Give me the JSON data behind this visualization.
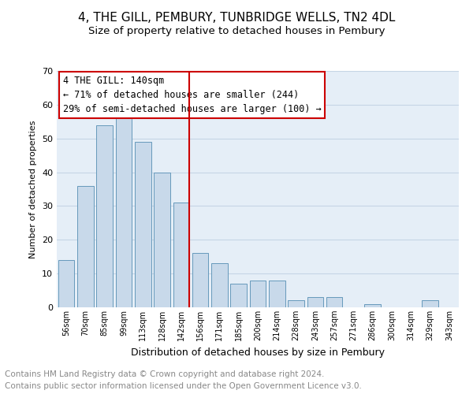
{
  "title": "4, THE GILL, PEMBURY, TUNBRIDGE WELLS, TN2 4DL",
  "subtitle": "Size of property relative to detached houses in Pembury",
  "xlabel": "Distribution of detached houses by size in Pembury",
  "ylabel": "Number of detached properties",
  "footer1": "Contains HM Land Registry data © Crown copyright and database right 2024.",
  "footer2": "Contains public sector information licensed under the Open Government Licence v3.0.",
  "bar_labels": [
    "56sqm",
    "70sqm",
    "85sqm",
    "99sqm",
    "113sqm",
    "128sqm",
    "142sqm",
    "156sqm",
    "171sqm",
    "185sqm",
    "200sqm",
    "214sqm",
    "228sqm",
    "243sqm",
    "257sqm",
    "271sqm",
    "286sqm",
    "300sqm",
    "314sqm",
    "329sqm",
    "343sqm"
  ],
  "bar_values": [
    14,
    36,
    54,
    57,
    49,
    40,
    31,
    16,
    13,
    7,
    8,
    8,
    2,
    3,
    3,
    0,
    1,
    0,
    0,
    2,
    0
  ],
  "bar_color": "#c8d9ea",
  "bar_edge_color": "#6699bb",
  "vline_color": "#cc0000",
  "annotation_line1": "4 THE GILL: 140sqm",
  "annotation_line2": "← 71% of detached houses are smaller (244)",
  "annotation_line3": "29% of semi-detached houses are larger (100) →",
  "annotation_box_color": "#ffffff",
  "annotation_box_edge_color": "#cc0000",
  "ylim": [
    0,
    70
  ],
  "yticks": [
    0,
    10,
    20,
    30,
    40,
    50,
    60,
    70
  ],
  "grid_color": "#c5d5e5",
  "background_color": "#e5eef7",
  "title_fontsize": 11,
  "subtitle_fontsize": 9.5,
  "annot_fontsize": 8.5,
  "footer_fontsize": 7.5,
  "ylabel_fontsize": 8,
  "xlabel_fontsize": 9
}
